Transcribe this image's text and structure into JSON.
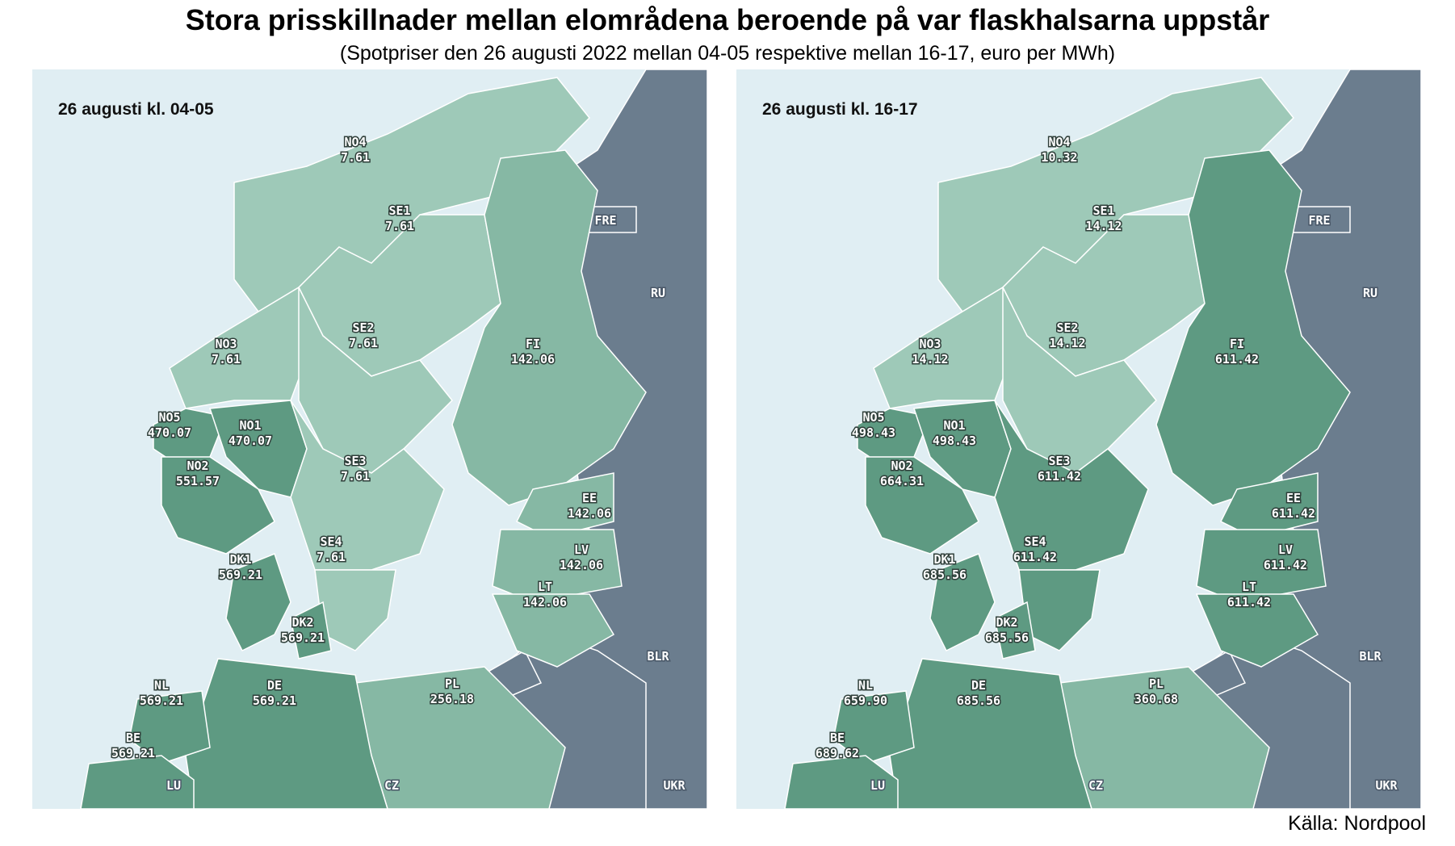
{
  "title": "Stora prisskillnader mellan elområdena beroende på var flaskhalsarna uppstår",
  "subtitle": "(Spotpriser den 26 augusti 2022 mellan 04-05 respektive mellan 16-17, euro per MWh)",
  "source": "Källa: Nordpool",
  "colors": {
    "sea": "#e0eef3",
    "non_market": "#6b7d8e",
    "price_low": "#9ec9b8",
    "price_mid": "#86b8a4",
    "price_high": "#5e9a82",
    "border": "#ffffff"
  },
  "panels": [
    {
      "title": "26 augusti kl. 04-05",
      "zones": {
        "NO4": "7.61",
        "SE1": "7.61",
        "NO3": "7.61",
        "SE2": "7.61",
        "FI": "142.06",
        "NO5": "470.07",
        "NO1": "470.07",
        "NO2": "551.57",
        "SE3": "7.61",
        "EE": "142.06",
        "SE4": "7.61",
        "LV": "142.06",
        "DK1": "569.21",
        "LT": "142.06",
        "DK2": "569.21",
        "NL": "569.21",
        "DE": "569.21",
        "PL": "256.18",
        "BE": "569.21"
      }
    },
    {
      "title": "26 augusti kl. 16-17",
      "zones": {
        "NO4": "10.32",
        "SE1": "14.12",
        "NO3": "14.12",
        "SE2": "14.12",
        "FI": "611.42",
        "NO5": "498.43",
        "NO1": "498.43",
        "NO2": "664.31",
        "SE3": "611.42",
        "EE": "611.42",
        "SE4": "611.42",
        "LV": "611.42",
        "DK1": "685.56",
        "LT": "611.42",
        "DK2": "685.56",
        "NL": "659.90",
        "DE": "685.56",
        "PL": "360.68",
        "BE": "689.62"
      }
    }
  ],
  "other_labels": [
    "FRE",
    "RU",
    "BLR",
    "CZ",
    "UKR",
    "LU"
  ]
}
